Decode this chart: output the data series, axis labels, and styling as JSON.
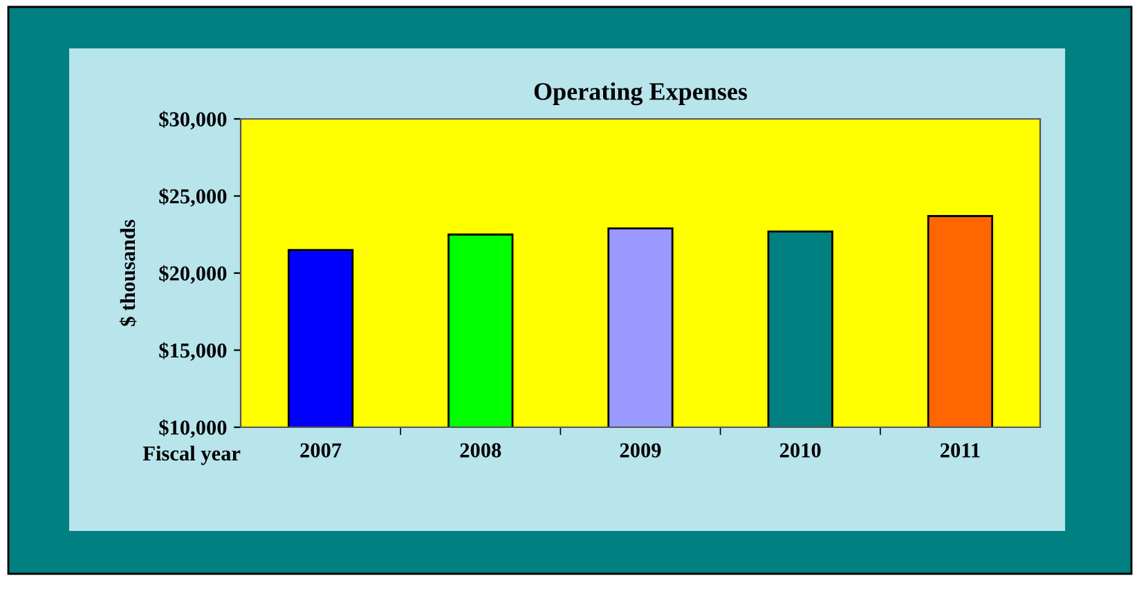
{
  "chart_data": {
    "type": "bar",
    "title": "Operating Expenses",
    "xlabel": "Fiscal year",
    "ylabel": "$ thousands",
    "categories": [
      "2007",
      "2008",
      "2009",
      "2010",
      "2011"
    ],
    "values": [
      21500,
      22500,
      22900,
      22700,
      23700
    ],
    "colors": [
      "#0000ff",
      "#00ff00",
      "#9999ff",
      "#008080",
      "#ff6600"
    ],
    "ylim": [
      10000,
      30000
    ],
    "yticks": [
      {
        "value": 10000,
        "label": "$10,000"
      },
      {
        "value": 15000,
        "label": "$15,000"
      },
      {
        "value": 20000,
        "label": "$20,000"
      },
      {
        "value": 25000,
        "label": "$25,000"
      },
      {
        "value": 30000,
        "label": "$30,000"
      }
    ],
    "grid": false,
    "legend": false
  }
}
